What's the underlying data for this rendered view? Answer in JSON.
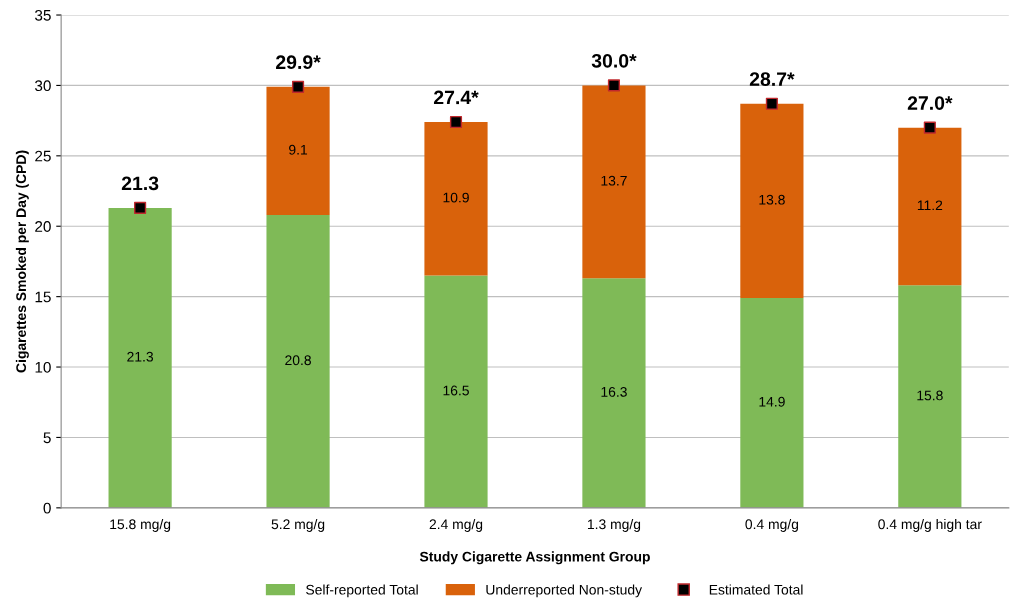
{
  "chart_data": {
    "type": "bar",
    "stacked": true,
    "xlabel": "Study Cigarette Assignment Group",
    "ylabel": "Cigarettes Smoked per Day (CPD)",
    "categories": [
      "15.8 mg/g",
      "5.2 mg/g",
      "2.4 mg/g",
      "1.3 mg/g",
      "0.4 mg/g",
      "0.4 mg/g high tar"
    ],
    "series": [
      {
        "name": "Self-reported Total",
        "color": "#7fba57",
        "values": [
          21.3,
          20.8,
          16.5,
          16.3,
          14.9,
          15.8
        ],
        "value_labels": [
          "21.3",
          "20.8",
          "16.5",
          "16.3",
          "14.9",
          "15.8"
        ]
      },
      {
        "name": "Underreported Non-study",
        "color": "#d9620b",
        "values": [
          null,
          9.1,
          10.9,
          13.7,
          13.8,
          11.2
        ],
        "value_labels": [
          null,
          "9.1",
          "10.9",
          "13.7",
          "13.8",
          "11.2"
        ]
      },
      {
        "name": "Estimated Total",
        "type": "scatter",
        "marker": "square",
        "color": "#000000",
        "values": [
          21.3,
          29.9,
          27.4,
          30.0,
          28.7,
          27.0
        ],
        "value_labels": [
          "21.3",
          "29.9*",
          "27.4*",
          "30.0*",
          "28.7*",
          "27.0*"
        ]
      }
    ],
    "ylim": [
      0,
      35
    ],
    "yticks": [
      0,
      5,
      10,
      15,
      20,
      25,
      30,
      35
    ],
    "grid": "y",
    "legend": "bottom"
  }
}
